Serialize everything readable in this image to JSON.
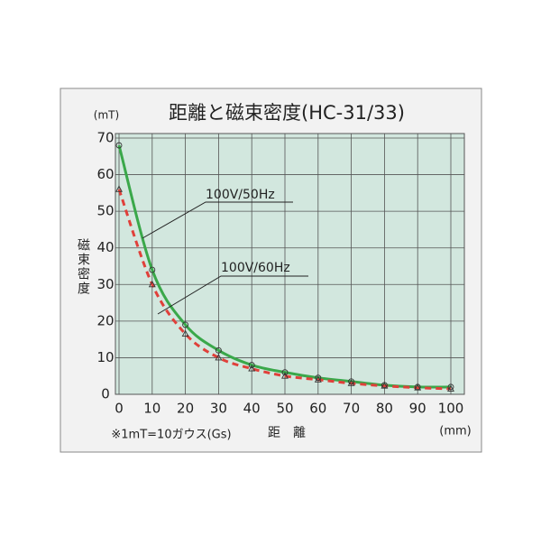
{
  "chart_data": {
    "type": "line",
    "title": "距離と磁束密度(HC-31/33)",
    "y_unit": "(mT)",
    "x_unit": "(mm)",
    "ylabel": "磁束密度",
    "xlabel": "距　離",
    "note": "※1mT=10ガウス(Gs)",
    "x": [
      0,
      10,
      20,
      30,
      40,
      50,
      60,
      70,
      80,
      90,
      100
    ],
    "xlim": [
      0,
      100
    ],
    "xticks": [
      0,
      10,
      20,
      30,
      40,
      50,
      60,
      70,
      80,
      90,
      100
    ],
    "ylim": [
      0,
      70
    ],
    "yticks": [
      0,
      10,
      20,
      30,
      40,
      50,
      60,
      70
    ],
    "grid": true,
    "series": [
      {
        "name": "100V/50Hz",
        "color": "#3aa84a",
        "marker": "circle",
        "values": [
          68,
          34,
          19,
          12,
          8,
          6,
          4.5,
          3.5,
          2.5,
          2,
          2
        ]
      },
      {
        "name": "100V/60Hz",
        "color": "#e0403a",
        "marker": "triangle",
        "values": [
          56,
          30,
          16.5,
          10,
          7,
          5,
          4,
          3,
          2.3,
          1.8,
          1.5
        ]
      }
    ]
  }
}
